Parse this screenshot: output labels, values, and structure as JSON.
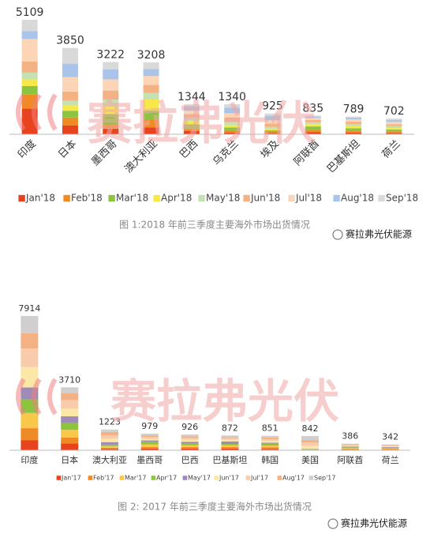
{
  "chart_data": [
    {
      "type": "bar",
      "stacked": true,
      "categories": [
        "印度",
        "日本",
        "墨西哥",
        "澳大利亚",
        "巴西",
        "乌克兰",
        "埃及",
        "阿联酋",
        "巴基斯坦",
        "荷兰"
      ],
      "totals": [
        5109,
        3850,
        3222,
        3208,
        1344,
        1340,
        925,
        835,
        789,
        702
      ],
      "series": [
        {
          "name": "Jan'18",
          "color": "#e8431f",
          "values": [
            1150,
            400,
            250,
            300,
            150,
            80,
            50,
            100,
            80,
            60
          ]
        },
        {
          "name": "Feb'18",
          "color": "#f08a24",
          "values": [
            620,
            350,
            200,
            350,
            100,
            100,
            75,
            100,
            90,
            70
          ]
        },
        {
          "name": "Mar'18",
          "color": "#8cc43f",
          "values": [
            380,
            300,
            450,
            400,
            200,
            120,
            50,
            150,
            100,
            80
          ]
        },
        {
          "name": "Apr'18",
          "color": "#f7e84a",
          "values": [
            300,
            250,
            350,
            500,
            150,
            100,
            50,
            100,
            100,
            70
          ]
        },
        {
          "name": "May'18",
          "color": "#c5e0b3",
          "values": [
            300,
            200,
            300,
            300,
            150,
            150,
            100,
            85,
            90,
            80
          ]
        },
        {
          "name": "Jun'18",
          "color": "#f4b183",
          "values": [
            500,
            400,
            400,
            350,
            150,
            200,
            150,
            100,
            100,
            90
          ]
        },
        {
          "name": "Jul'18",
          "color": "#fbd5b5",
          "values": [
            1000,
            650,
            500,
            400,
            144,
            190,
            150,
            100,
            109,
            102
          ]
        },
        {
          "name": "Aug'18",
          "color": "#a9c4e8",
          "values": [
            359,
            600,
            450,
            308,
            200,
            250,
            200,
            50,
            70,
            80
          ]
        },
        {
          "name": "Sep'18",
          "color": "#d9d9d9",
          "values": [
            500,
            700,
            322,
            300,
            100,
            150,
            100,
            50,
            50,
            70
          ]
        }
      ],
      "caption": "图 1:2018 年前三季度主要海外市场出货情况"
    },
    {
      "type": "bar",
      "stacked": true,
      "categories": [
        "印度",
        "日本",
        "澳大利亚",
        "墨西哥",
        "巴西",
        "巴基斯坦",
        "韩国",
        "美国",
        "阿联酋",
        "荷兰"
      ],
      "totals": [
        7914,
        3710,
        1223,
        979,
        926,
        872,
        851,
        842,
        386,
        342
      ],
      "series": [
        {
          "name": "Jan'17",
          "color": "#e8431f",
          "values": [
            600,
            400,
            80,
            100,
            100,
            100,
            80,
            20,
            40,
            30
          ]
        },
        {
          "name": "Feb'17",
          "color": "#f08a24",
          "values": [
            700,
            350,
            70,
            100,
            100,
            100,
            100,
            20,
            40,
            40
          ]
        },
        {
          "name": "Mar'17",
          "color": "#f9c74a",
          "values": [
            900,
            450,
            100,
            150,
            100,
            100,
            100,
            20,
            50,
            40
          ]
        },
        {
          "name": "Apr'17",
          "color": "#8cc43f",
          "values": [
            800,
            400,
            80,
            150,
            100,
            72,
            100,
            20,
            40,
            40
          ]
        },
        {
          "name": "May'17",
          "color": "#a08bb8",
          "values": [
            700,
            400,
            150,
            79,
            100,
            150,
            71,
            20,
            40,
            40
          ]
        },
        {
          "name": "Jun'17",
          "color": "#fbe7a6",
          "values": [
            1200,
            450,
            200,
            100,
            126,
            100,
            100,
            150,
            50,
            40
          ]
        },
        {
          "name": "Jul'17",
          "color": "#f8cbad",
          "values": [
            1100,
            500,
            193,
            100,
            100,
            100,
            100,
            200,
            46,
            42
          ]
        },
        {
          "name": "Aug'17",
          "color": "#f4b183",
          "values": [
            900,
            400,
            200,
            100,
            100,
            50,
            100,
            150,
            40,
            40
          ]
        },
        {
          "name": "Sep'17",
          "color": "#d0cece",
          "values": [
            1014,
            360,
            150,
            100,
            100,
            100,
            100,
            242,
            40,
            30
          ]
        }
      ],
      "caption": "图 2: 2017 年前三季度主要海外市场出货情况"
    }
  ],
  "watermark": "赛拉弗光伏",
  "brand": "赛拉弗光伏能源"
}
